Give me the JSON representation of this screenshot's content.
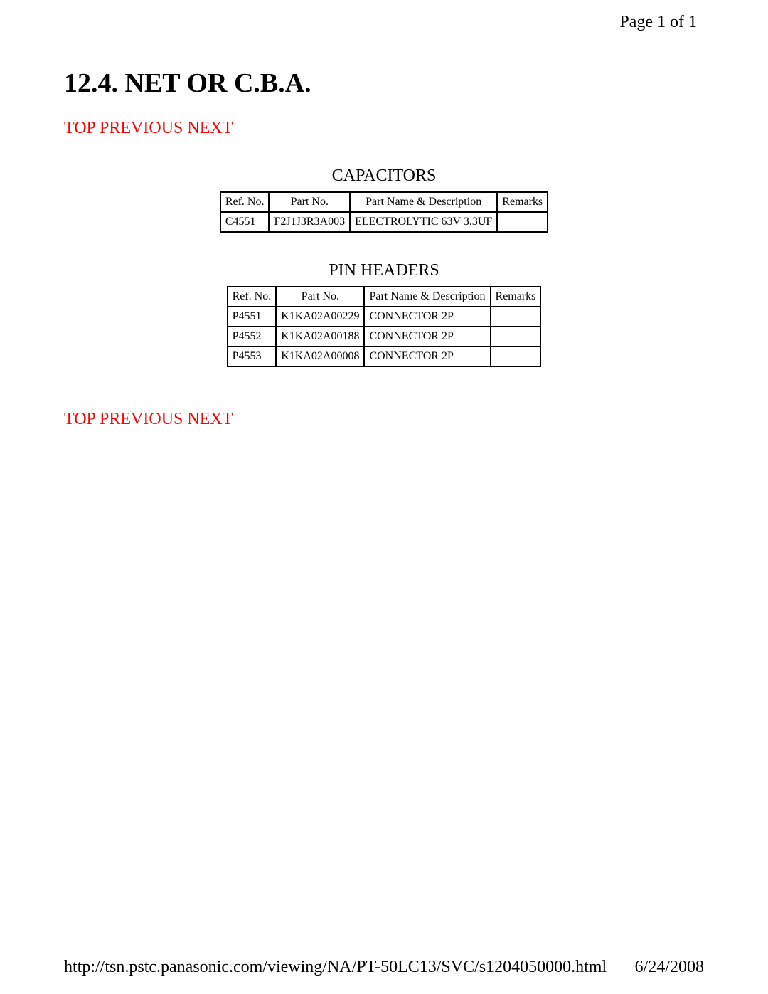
{
  "page_indicator": "Page 1 of 1",
  "title": "12.4. NET OR C.B.A.",
  "nav": {
    "top": "TOP",
    "previous": "PREVIOUS",
    "next": "NEXT"
  },
  "sections": {
    "capacitors": {
      "title": "CAPACITORS",
      "headers": [
        "Ref. No.",
        "Part No.",
        "Part Name & Description",
        "Remarks"
      ],
      "rows": [
        [
          "C4551",
          "F2J1J3R3A003",
          "ELECTROLYTIC 63V 3.3UF",
          ""
        ]
      ]
    },
    "pinheaders": {
      "title": "PIN HEADERS",
      "headers": [
        "Ref. No.",
        "Part No.",
        "Part Name & Description",
        "Remarks"
      ],
      "rows": [
        [
          "P4551",
          "K1KA02A00229",
          "CONNECTOR 2P",
          ""
        ],
        [
          "P4552",
          "K1KA02A00188",
          "CONNECTOR 2P",
          ""
        ],
        [
          "P4553",
          "K1KA02A00008",
          "CONNECTOR 2P",
          ""
        ]
      ]
    }
  },
  "footer": {
    "url": "http://tsn.pstc.panasonic.com/viewing/NA/PT-50LC13/SVC/s1204050000.html",
    "date": "6/24/2008"
  }
}
